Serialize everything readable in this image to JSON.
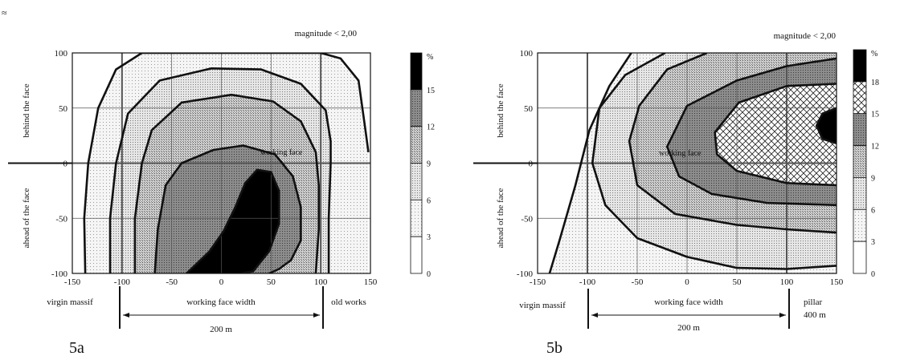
{
  "corner_mark": "≈",
  "colors": {
    "ink": "#111111",
    "level_fill": [
      "#ffffff",
      "#f2f2f2",
      "#dedede",
      "#c9c9c9",
      "#8f8f8f",
      "#000000"
    ],
    "crosshatch_fill": "#ffffff"
  },
  "chart_data": [
    {
      "type": "contour",
      "panel_label": "5a",
      "title": "magnitude < 2,00",
      "x_ticks": [
        "-150",
        "-100",
        "-50",
        "0",
        "50",
        "100",
        "150"
      ],
      "y_ticks": [
        "100",
        "50",
        "0",
        "-50",
        "-100"
      ],
      "xlim": [
        -150,
        150
      ],
      "ylim": [
        -100,
        100
      ],
      "y_label_upper": "behind the face",
      "y_label_lower": "ahead of the face",
      "zones": [
        "virgin massif",
        "working face width",
        "old works"
      ],
      "dimension": "200 m",
      "inline_label": "working face",
      "legend_unit": "%",
      "legend_ticks": [
        "15",
        "12",
        "9",
        "6",
        "3",
        "0"
      ],
      "contour_levels": [
        3,
        6,
        9,
        12,
        15
      ],
      "contours": [
        {
          "level": 3,
          "points": [
            [
              -137,
              -100
            ],
            [
              -138,
              -50
            ],
            [
              -134,
              0
            ],
            [
              -124,
              50
            ],
            [
              -106,
              85
            ],
            [
              -80,
              100
            ],
            [
              -10,
              100
            ],
            [
              20,
              100
            ],
            [
              80,
              100
            ],
            [
              100,
              100
            ],
            [
              120,
              95
            ],
            [
              138,
              75
            ],
            [
              145,
              30
            ],
            [
              148,
              10
            ]
          ]
        },
        {
          "level": 6,
          "points": [
            [
              -112,
              -100
            ],
            [
              -112,
              -50
            ],
            [
              -106,
              0
            ],
            [
              -94,
              45
            ],
            [
              -62,
              75
            ],
            [
              -10,
              86
            ],
            [
              40,
              85
            ],
            [
              80,
              72
            ],
            [
              105,
              48
            ],
            [
              110,
              20
            ],
            [
              110,
              0
            ],
            [
              108,
              -50
            ],
            [
              108,
              -100
            ]
          ]
        },
        {
          "level": 9,
          "points": [
            [
              -87,
              -100
            ],
            [
              -87,
              -50
            ],
            [
              -80,
              0
            ],
            [
              -70,
              30
            ],
            [
              -40,
              55
            ],
            [
              10,
              62
            ],
            [
              52,
              56
            ],
            [
              80,
              38
            ],
            [
              95,
              10
            ],
            [
              98,
              -20
            ],
            [
              98,
              -60
            ],
            [
              95,
              -100
            ]
          ]
        },
        {
          "level": 12,
          "points": [
            [
              -67,
              -100
            ],
            [
              -64,
              -60
            ],
            [
              -56,
              -20
            ],
            [
              -40,
              0
            ],
            [
              -8,
              12
            ],
            [
              22,
              16
            ],
            [
              54,
              8
            ],
            [
              72,
              -12
            ],
            [
              80,
              -40
            ],
            [
              80,
              -70
            ],
            [
              70,
              -88
            ],
            [
              58,
              -96
            ],
            [
              48,
              -100
            ]
          ]
        },
        {
          "level": 15,
          "points": [
            [
              -35,
              -100
            ],
            [
              -12,
              -80
            ],
            [
              2,
              -62
            ],
            [
              14,
              -40
            ],
            [
              24,
              -18
            ],
            [
              36,
              -6
            ],
            [
              50,
              -8
            ],
            [
              58,
              -25
            ],
            [
              58,
              -55
            ],
            [
              48,
              -80
            ],
            [
              32,
              -98
            ],
            [
              20,
              -100
            ]
          ]
        }
      ]
    },
    {
      "type": "contour",
      "panel_label": "5b",
      "title": "magnitude < 2,00",
      "x_ticks": [
        "-150",
        "-100",
        "-50",
        "0",
        "50",
        "100",
        "150"
      ],
      "y_ticks": [
        "100",
        "50",
        "0",
        "-50",
        "-100"
      ],
      "xlim": [
        -150,
        150
      ],
      "ylim": [
        -100,
        100
      ],
      "y_label_upper": "behind the face",
      "y_label_lower": "ahead of the face",
      "zones": [
        "virgin massif",
        "working face width",
        "pillar"
      ],
      "pillar_width": "400 m",
      "dimension": "200 m",
      "inline_label": "working face",
      "legend_unit": "%",
      "legend_ticks": [
        "18",
        "15",
        "12",
        "9",
        "6",
        "3",
        "0"
      ],
      "contour_levels": [
        3,
        6,
        9,
        12,
        15,
        18
      ],
      "contours": [
        {
          "level": 3,
          "points": [
            [
              -138,
              -100
            ],
            [
              -128,
              -70
            ],
            [
              -112,
              -20
            ],
            [
              -98,
              30
            ],
            [
              -78,
              70
            ],
            [
              -56,
              100
            ]
          ]
        },
        {
          "level": 6,
          "points": [
            [
              -22,
              100
            ],
            [
              -62,
              80
            ],
            [
              -88,
              50
            ],
            [
              -95,
              0
            ],
            [
              -82,
              -38
            ],
            [
              -50,
              -68
            ],
            [
              0,
              -85
            ],
            [
              50,
              -95
            ],
            [
              100,
              -96
            ],
            [
              150,
              -93
            ]
          ]
        },
        {
          "level": 9,
          "points": [
            [
              20,
              100
            ],
            [
              -20,
              85
            ],
            [
              -48,
              52
            ],
            [
              -58,
              20
            ],
            [
              -50,
              -20
            ],
            [
              -12,
              -46
            ],
            [
              50,
              -56
            ],
            [
              100,
              -60
            ],
            [
              150,
              -63
            ]
          ]
        },
        {
          "level": 12,
          "points": [
            [
              150,
              95
            ],
            [
              100,
              88
            ],
            [
              50,
              75
            ],
            [
              0,
              52
            ],
            [
              -20,
              15
            ],
            [
              -8,
              -12
            ],
            [
              25,
              -28
            ],
            [
              80,
              -36
            ],
            [
              150,
              -38
            ]
          ]
        },
        {
          "level": 15,
          "points": [
            [
              150,
              72
            ],
            [
              100,
              70
            ],
            [
              52,
              55
            ],
            [
              28,
              28
            ],
            [
              30,
              8
            ],
            [
              50,
              -7
            ],
            [
              100,
              -18
            ],
            [
              150,
              -20
            ]
          ]
        },
        {
          "level": 18,
          "points": [
            [
              150,
              50
            ],
            [
              136,
              45
            ],
            [
              130,
              34
            ],
            [
              136,
              22
            ],
            [
              150,
              18
            ]
          ]
        }
      ]
    }
  ]
}
